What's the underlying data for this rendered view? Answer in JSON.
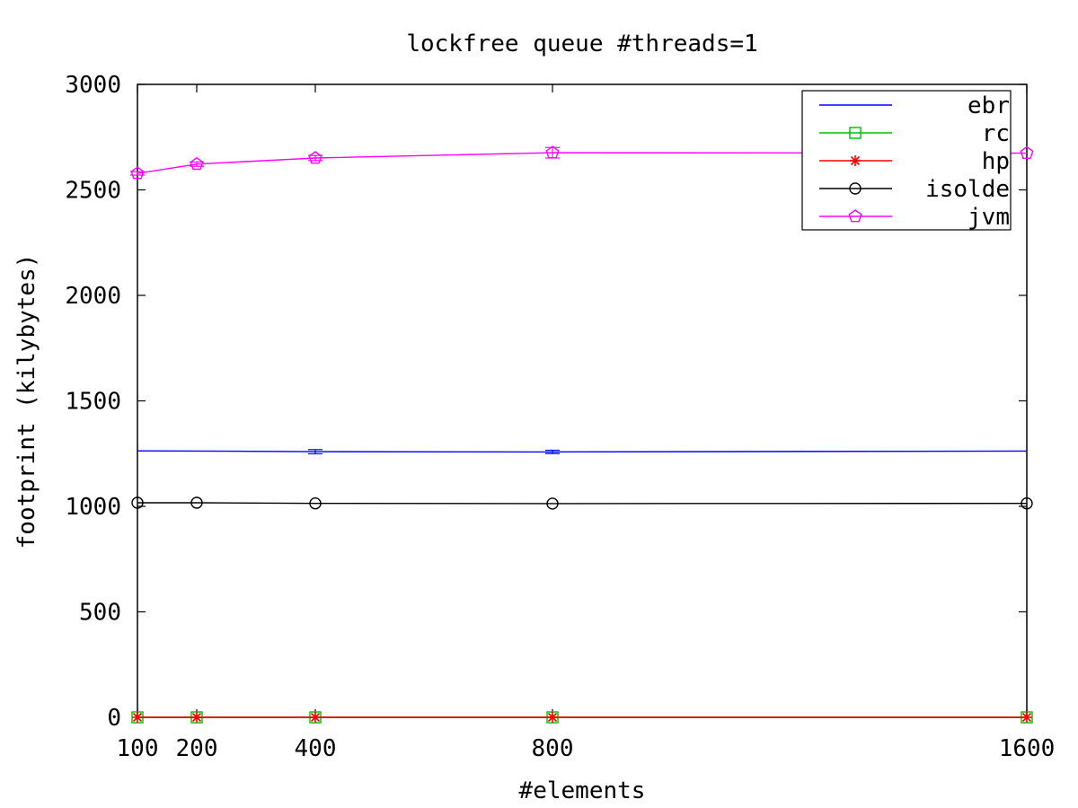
{
  "chart_data": {
    "type": "line",
    "title": "lockfree queue #threads=1",
    "xlabel": "#elements",
    "ylabel": "footprint (kilybytes)",
    "x": [
      100,
      200,
      400,
      800,
      1600
    ],
    "x_tick_labels": [
      "100",
      "200",
      "400",
      "800",
      "1600"
    ],
    "xlim": [
      100,
      1600
    ],
    "ylim": [
      0,
      3000
    ],
    "y_ticks": [
      0,
      500,
      1000,
      1500,
      2000,
      2500,
      3000
    ],
    "grid": false,
    "legend_position": "top-right",
    "series": [
      {
        "name": "ebr",
        "color": "#0000ff",
        "marker": "none",
        "values": [
          1263,
          1262,
          1259,
          1258,
          1262
        ],
        "errors": [
          0,
          0,
          10,
          8,
          0
        ]
      },
      {
        "name": "rc",
        "color": "#00c000",
        "marker": "square",
        "values": [
          0,
          0,
          0,
          0,
          0
        ],
        "errors": [
          0,
          0,
          0,
          0,
          0
        ]
      },
      {
        "name": "hp",
        "color": "#ff0000",
        "marker": "star",
        "values": [
          0,
          0,
          0,
          0,
          0
        ],
        "errors": [
          0,
          0,
          0,
          0,
          0
        ]
      },
      {
        "name": "isolde",
        "color": "#000000",
        "marker": "circle",
        "values": [
          1017,
          1017,
          1014,
          1013,
          1014
        ],
        "errors": [
          0,
          0,
          0,
          0,
          0
        ]
      },
      {
        "name": "jvm",
        "color": "#ff00ff",
        "marker": "pentagon",
        "values": [
          2578,
          2622,
          2651,
          2676,
          2674
        ],
        "errors": [
          8,
          10,
          12,
          25,
          0
        ]
      }
    ]
  }
}
